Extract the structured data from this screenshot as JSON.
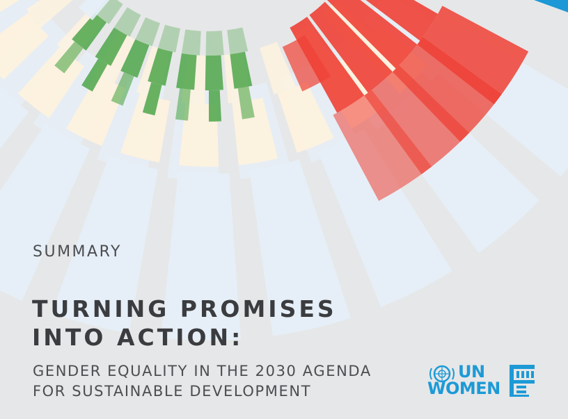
{
  "document": {
    "label": "SUMMARY",
    "title_line_1": "TURNING PROMISES",
    "title_line_2": "INTO ACTION:",
    "subtitle_line_1": "GENDER EQUALITY IN THE 2030 AGENDA",
    "subtitle_line_2": "FOR SUSTAINABLE DEVELOPMENT"
  },
  "logo": {
    "line_1": "UN",
    "line_2": "WOMEN",
    "color": "#1d9ad6"
  },
  "colors": {
    "background": "#e6e7e8",
    "text_dark": "#3b3c3f",
    "red": "#ee4035",
    "green": "#4ea64a",
    "blue": "#1b98d5",
    "pale_yellow": "#fdf2de",
    "pale_blue": "#e6eff8"
  }
}
